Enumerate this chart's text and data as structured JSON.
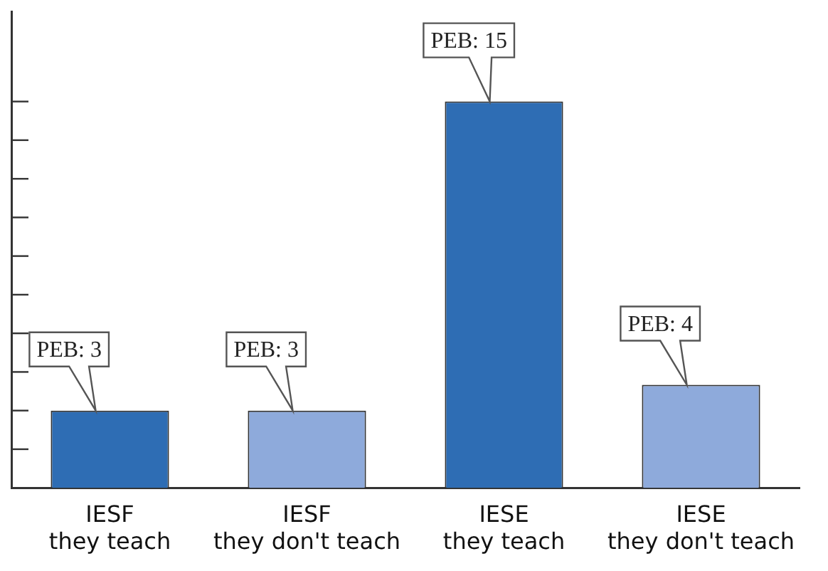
{
  "chart_data": {
    "type": "bar",
    "categories": [
      "IESF\nthey teach",
      "IESF\nthey don't teach",
      "IESE\nthey teach",
      "IESE\nthey don't teach"
    ],
    "values": [
      3,
      3,
      15,
      4
    ],
    "colors": [
      "#2e6db4",
      "#8eaadb",
      "#2e6db4",
      "#8eaadb"
    ],
    "value_labels": [
      "PEB: 3",
      "PEB: 3",
      "PEB: 15",
      "PEB: 4"
    ],
    "ylim": [
      0,
      18.5
    ],
    "yticks": [
      {
        "value": 1.5,
        "label": null
      },
      {
        "value": 3,
        "label": null
      },
      {
        "value": 4.5,
        "label": null
      },
      {
        "value": 6,
        "label": null
      },
      {
        "value": 7.5,
        "label": null
      },
      {
        "value": 9,
        "label": null
      },
      {
        "value": 10.5,
        "label": null
      },
      {
        "value": 12,
        "label": null
      },
      {
        "value": 13.5,
        "label": null
      },
      {
        "value": 15,
        "label": null
      }
    ],
    "tick_labels": "x",
    "grid": false,
    "legend": false
  }
}
